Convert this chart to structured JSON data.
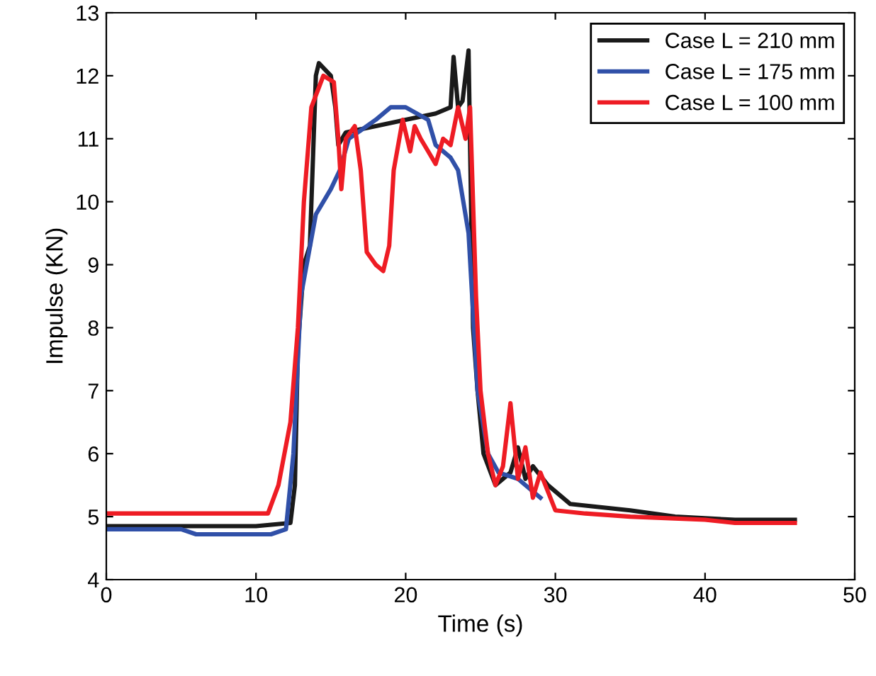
{
  "chart_data": {
    "type": "line",
    "xlabel": "Time (s)",
    "ylabel": "Impulse (KN)",
    "xlim": [
      0,
      50
    ],
    "ylim": [
      4,
      13
    ],
    "xticks": [
      0,
      10,
      20,
      30,
      40,
      50
    ],
    "yticks": [
      4,
      5,
      6,
      7,
      8,
      9,
      10,
      11,
      12,
      13
    ],
    "legend": "top right",
    "grid": false,
    "marker": "none",
    "line_style": "solid",
    "series": [
      {
        "name": "Case L = 210 mm",
        "color": "#1a1a1a",
        "x": [
          0,
          5,
          10,
          12.3,
          12.6,
          12.8,
          13.2,
          13.6,
          14,
          14.2,
          15,
          15.3,
          15.5,
          16,
          18,
          20,
          22,
          23,
          23.2,
          23.5,
          23.8,
          24.2,
          24.5,
          24.8,
          25.2,
          26,
          27,
          27.5,
          28,
          28.5,
          29.5,
          31,
          33,
          35,
          38,
          42,
          46
        ],
        "values": [
          4.85,
          4.85,
          4.85,
          4.9,
          5.5,
          7.7,
          9,
          9.3,
          12,
          12.2,
          12,
          11.5,
          10.9,
          11.1,
          11.2,
          11.3,
          11.4,
          11.5,
          12.3,
          11.5,
          11.6,
          12.4,
          8,
          7,
          6,
          5.5,
          5.7,
          6.1,
          5.6,
          5.8,
          5.5,
          5.2,
          5.15,
          5.1,
          5.0,
          4.95,
          4.95
        ]
      },
      {
        "name": "Case L = 175 mm",
        "color": "#3050a8",
        "x": [
          0,
          5,
          6,
          11,
          12,
          12.5,
          13,
          14,
          15,
          15.6,
          16.2,
          18,
          19,
          20,
          21.5,
          22,
          23,
          23.5,
          24.2,
          24.8,
          25.5,
          26.2,
          27.5,
          29
        ],
        "values": [
          4.8,
          4.8,
          4.72,
          4.72,
          4.8,
          6,
          8.5,
          9.8,
          10.2,
          10.5,
          11.0,
          11.3,
          11.5,
          11.5,
          11.3,
          10.9,
          10.7,
          10.5,
          9.5,
          7,
          6,
          5.7,
          5.6,
          5.3
        ]
      },
      {
        "name": "Case L = 100 mm",
        "color": "#ee1c24",
        "x": [
          0,
          5,
          10.8,
          11.5,
          12.3,
          12.8,
          13.2,
          13.7,
          14.5,
          15.2,
          15.5,
          15.7,
          16,
          16.6,
          17,
          17.4,
          18,
          18.5,
          18.9,
          19.2,
          19.8,
          20.3,
          20.6,
          21,
          21.5,
          22,
          22.5,
          23,
          23.5,
          24,
          24.3,
          24.7,
          25,
          25.5,
          26,
          26.5,
          27,
          27.5,
          28,
          28.5,
          29,
          30,
          32,
          35,
          40,
          42,
          46
        ],
        "values": [
          5.05,
          5.05,
          5.05,
          5.5,
          6.5,
          8,
          10,
          11.5,
          12.0,
          11.9,
          11.0,
          10.2,
          11.0,
          11.2,
          10.5,
          9.2,
          9.0,
          8.9,
          9.3,
          10.5,
          11.3,
          10.8,
          11.2,
          11.0,
          10.8,
          10.6,
          11.0,
          10.9,
          11.5,
          11.0,
          11.5,
          8.5,
          7,
          6,
          5.5,
          5.8,
          6.8,
          5.6,
          6.1,
          5.3,
          5.7,
          5.1,
          5.05,
          5.0,
          4.95,
          4.9,
          4.9
        ]
      }
    ]
  }
}
